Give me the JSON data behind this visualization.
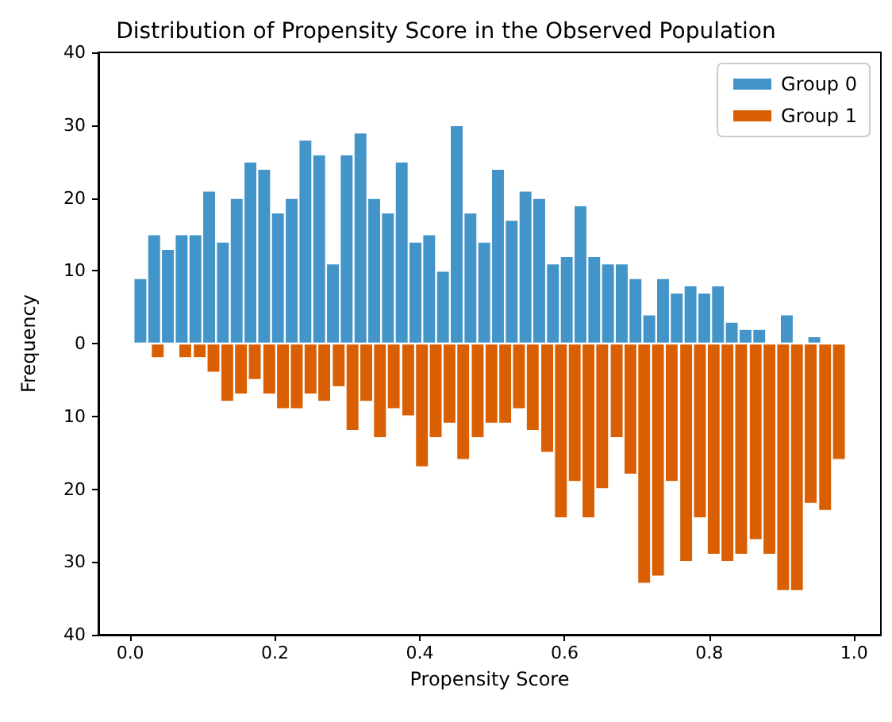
{
  "chart_data": {
    "type": "bar",
    "title": "Distribution of Propensity Score in the Observed Population",
    "xlabel": "Propensity Score",
    "ylabel": "Frequency",
    "xlim": [
      -0.044,
      1.037
    ],
    "xticks": [
      {
        "value": 0,
        "label": "0.0"
      },
      0.2,
      0.4,
      0.6,
      0.8,
      {
        "value": 1,
        "label": "1.0"
      }
    ],
    "ylim": [
      -40,
      40
    ],
    "yticks": [
      {
        "value": -40,
        "label": "40"
      },
      {
        "value": -30,
        "label": "30"
      },
      {
        "value": -20,
        "label": "20"
      },
      {
        "value": -10,
        "label": "10"
      },
      0,
      10,
      20,
      30,
      40
    ],
    "grid": false,
    "legend": "top right",
    "series": [
      {
        "name": "Group 0",
        "color": "#4394c8",
        "x": [
          0.014,
          0.033,
          0.052,
          0.071,
          0.09,
          0.109,
          0.128,
          0.147,
          0.166,
          0.185,
          0.204,
          0.223,
          0.242,
          0.261,
          0.28,
          0.299,
          0.318,
          0.337,
          0.356,
          0.375,
          0.394,
          0.413,
          0.432,
          0.451,
          0.47,
          0.489,
          0.508,
          0.527,
          0.546,
          0.565,
          0.584,
          0.603,
          0.622,
          0.641,
          0.66,
          0.679,
          0.698,
          0.717,
          0.736,
          0.755,
          0.774,
          0.793,
          0.812,
          0.831,
          0.85,
          0.869,
          0.888,
          0.907,
          0.926,
          0.945
        ],
        "values": [
          9,
          15,
          13,
          15,
          15,
          21,
          14,
          20,
          25,
          24,
          18,
          20,
          28,
          26,
          11,
          26,
          29,
          20,
          18,
          25,
          14,
          15,
          10,
          30,
          18,
          14,
          24,
          17,
          21,
          20,
          11,
          12,
          19,
          12,
          11,
          11,
          9,
          4,
          9,
          7,
          8,
          7,
          8,
          3,
          2,
          2,
          0,
          4,
          0,
          1
        ]
      },
      {
        "name": "Group 1",
        "color": "#d95f02",
        "x": [
          0.038,
          0.057,
          0.076,
          0.096,
          0.115,
          0.134,
          0.153,
          0.172,
          0.192,
          0.211,
          0.23,
          0.249,
          0.268,
          0.288,
          0.307,
          0.326,
          0.345,
          0.364,
          0.384,
          0.403,
          0.422,
          0.441,
          0.46,
          0.48,
          0.499,
          0.518,
          0.537,
          0.556,
          0.576,
          0.595,
          0.614,
          0.633,
          0.652,
          0.672,
          0.691,
          0.71,
          0.729,
          0.748,
          0.768,
          0.787,
          0.806,
          0.825,
          0.844,
          0.864,
          0.883,
          0.902,
          0.921,
          0.94,
          0.96,
          0.979
        ],
        "values": [
          -2,
          0,
          -2,
          -2,
          -4,
          -8,
          -7,
          -5,
          -7,
          -9,
          -9,
          -7,
          -8,
          -6,
          -12,
          -8,
          -13,
          -9,
          -10,
          -17,
          -13,
          -11,
          -16,
          -13,
          -11,
          -11,
          -9,
          -12,
          -15,
          -24,
          -19,
          -24,
          -20,
          -13,
          -18,
          -33,
          -32,
          -19,
          -30,
          -24,
          -29,
          -30,
          -29,
          -27,
          -29,
          -34,
          -34,
          -22,
          -23,
          -16
        ]
      }
    ]
  }
}
